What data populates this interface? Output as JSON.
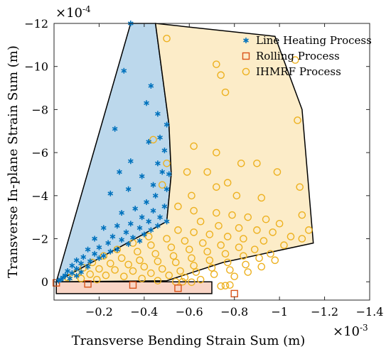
{
  "chart_data": {
    "type": "scatter",
    "xlabel": "Transverse Bending Strain Sum (m)",
    "ylabel": "Transverse In-plane Strain Sum (m)",
    "x_exponent": "×10",
    "x_exponent_power": "-3",
    "y_exponent": "×10",
    "y_exponent_power": "-4",
    "x_unit_scale": 0.001,
    "y_unit_scale": 0.0001,
    "xlim": [
      0,
      -1.4
    ],
    "ylim": [
      0.85,
      -12
    ],
    "x_reversed": true,
    "y_reversed": true,
    "x_ticks": [
      -0.2,
      -0.4,
      -0.6,
      -0.8,
      -1,
      -1.2,
      -1.4
    ],
    "x_tick_labels": [
      "−0.2",
      "−0.4",
      "−0.6",
      "−0.8",
      "−1",
      "−1.2",
      "−1.4"
    ],
    "y_ticks": [
      0,
      -2,
      -4,
      -6,
      -8,
      -10,
      -12
    ],
    "y_tick_labels": [
      "0",
      "−2",
      "−4",
      "−6",
      "−8",
      "−10",
      "−12"
    ],
    "grid": false,
    "legend_position": "top-right",
    "series": [
      {
        "name": "Line Heating Process",
        "marker": "asterisk",
        "color": "#0072bd",
        "region_fill": "#bcd8ec",
        "region": [
          [
            -0.01,
            0
          ],
          [
            -0.34,
            -12
          ],
          [
            -0.45,
            -12
          ],
          [
            -0.51,
            -7.3
          ],
          [
            -0.52,
            -5.0
          ],
          [
            -0.5,
            -2.8
          ],
          [
            -0.01,
            0
          ]
        ],
        "points": [
          [
            -0.34,
            -12
          ],
          [
            -0.31,
            -9.8
          ],
          [
            -0.43,
            -9.1
          ],
          [
            -0.41,
            -8.3
          ],
          [
            -0.46,
            -7.8
          ],
          [
            -0.5,
            -7.3
          ],
          [
            -0.27,
            -7.1
          ],
          [
            -0.42,
            -6.5
          ],
          [
            -0.47,
            -6.7
          ],
          [
            -0.49,
            -6.1
          ],
          [
            -0.34,
            -5.6
          ],
          [
            -0.46,
            -5.5
          ],
          [
            -0.29,
            -5.1
          ],
          [
            -0.48,
            -5.1
          ],
          [
            -0.51,
            -5.0
          ],
          [
            -0.39,
            -4.9
          ],
          [
            -0.44,
            -4.5
          ],
          [
            -0.5,
            -4.3
          ],
          [
            -0.33,
            -4.3
          ],
          [
            -0.25,
            -4.1
          ],
          [
            -0.45,
            -4.0
          ],
          [
            -0.41,
            -3.7
          ],
          [
            -0.49,
            -3.5
          ],
          [
            -0.36,
            -3.4
          ],
          [
            -0.44,
            -3.3
          ],
          [
            -0.3,
            -3.2
          ],
          [
            -0.47,
            -3.0
          ],
          [
            -0.39,
            -3.0
          ],
          [
            -0.5,
            -2.8
          ],
          [
            -0.42,
            -2.8
          ],
          [
            -0.34,
            -2.7
          ],
          [
            -0.46,
            -2.6
          ],
          [
            -0.28,
            -2.6
          ],
          [
            -0.38,
            -2.5
          ],
          [
            -0.22,
            -2.5
          ],
          [
            -0.43,
            -2.4
          ],
          [
            -0.32,
            -2.3
          ],
          [
            -0.4,
            -2.2
          ],
          [
            -0.26,
            -2.1
          ],
          [
            -0.35,
            -2.05
          ],
          [
            -0.18,
            -2.0
          ],
          [
            -0.3,
            -1.95
          ],
          [
            -0.38,
            -1.9
          ],
          [
            -0.24,
            -1.8
          ],
          [
            -0.33,
            -1.75
          ],
          [
            -0.2,
            -1.6
          ],
          [
            -0.28,
            -1.5
          ],
          [
            -0.15,
            -1.5
          ],
          [
            -0.25,
            -1.4
          ],
          [
            -0.18,
            -1.3
          ],
          [
            -0.22,
            -1.2
          ],
          [
            -0.13,
            -1.15
          ],
          [
            -0.2,
            -1.1
          ],
          [
            -0.1,
            -1.0
          ],
          [
            -0.16,
            -0.95
          ],
          [
            -0.12,
            -0.85
          ],
          [
            -0.08,
            -0.75
          ],
          [
            -0.15,
            -0.7
          ],
          [
            -0.1,
            -0.6
          ],
          [
            -0.06,
            -0.5
          ],
          [
            -0.12,
            -0.45
          ],
          [
            -0.08,
            -0.4
          ],
          [
            -0.05,
            -0.3
          ],
          [
            -0.1,
            -0.28
          ],
          [
            -0.04,
            -0.2
          ],
          [
            -0.07,
            -0.15
          ],
          [
            -0.03,
            -0.1
          ],
          [
            -0.02,
            -0.05
          ]
        ]
      },
      {
        "name": "Rolling Process",
        "marker": "square",
        "color": "#d95319",
        "region_fill": "#f9d5c6",
        "region": [
          [
            -0.01,
            0
          ],
          [
            -0.7,
            0
          ],
          [
            -0.7,
            0.55
          ],
          [
            -0.01,
            0.55
          ],
          [
            -0.01,
            0
          ]
        ],
        "points": [
          [
            -0.01,
            0.05
          ],
          [
            -0.15,
            0.1
          ],
          [
            -0.35,
            0.15
          ],
          [
            -0.55,
            0.3
          ],
          [
            -0.8,
            0.55
          ]
        ]
      },
      {
        "name": "IHMRF Process",
        "marker": "circle",
        "color": "#edb120",
        "region_fill": "#fcecc8",
        "region": [
          [
            -0.45,
            -12
          ],
          [
            -0.98,
            -11.4
          ],
          [
            -1.1,
            -8.0
          ],
          [
            -1.15,
            -1.8
          ],
          [
            -0.75,
            -0.9
          ],
          [
            -0.5,
            -0.05
          ],
          [
            -0.01,
            0
          ],
          [
            -0.5,
            -2.8
          ],
          [
            -0.52,
            -5.0
          ],
          [
            -0.51,
            -7.3
          ],
          [
            -0.45,
            -12
          ]
        ],
        "points": [
          [
            -0.5,
            -11.3
          ],
          [
            -0.72,
            -10.1
          ],
          [
            -1.07,
            -10.3
          ],
          [
            -0.74,
            -9.6
          ],
          [
            -0.76,
            -8.8
          ],
          [
            -1.08,
            -7.5
          ],
          [
            -0.44,
            -6.6
          ],
          [
            -0.62,
            -6.3
          ],
          [
            -0.72,
            -6.0
          ],
          [
            -0.5,
            -5.5
          ],
          [
            -0.59,
            -5.1
          ],
          [
            -0.68,
            -5.1
          ],
          [
            -0.83,
            -5.5
          ],
          [
            -0.9,
            -5.5
          ],
          [
            -0.99,
            -5.1
          ],
          [
            -0.77,
            -4.6
          ],
          [
            -0.72,
            -4.4
          ],
          [
            -0.48,
            -4.5
          ],
          [
            -0.61,
            -4.0
          ],
          [
            -0.81,
            -4.0
          ],
          [
            -0.92,
            -3.9
          ],
          [
            -1.09,
            -4.4
          ],
          [
            -1.1,
            -3.1
          ],
          [
            -0.55,
            -3.5
          ],
          [
            -0.62,
            -3.3
          ],
          [
            -0.72,
            -3.2
          ],
          [
            -0.79,
            -3.1
          ],
          [
            -0.86,
            -3.0
          ],
          [
            -0.94,
            -2.9
          ],
          [
            -1.0,
            -2.7
          ],
          [
            -1.13,
            -2.4
          ],
          [
            -0.65,
            -2.8
          ],
          [
            -0.73,
            -2.6
          ],
          [
            -0.82,
            -2.5
          ],
          [
            -0.9,
            -2.4
          ],
          [
            -0.97,
            -2.3
          ],
          [
            -1.05,
            -2.1
          ],
          [
            -1.1,
            -2.0
          ],
          [
            -0.55,
            -2.4
          ],
          [
            -0.62,
            -2.3
          ],
          [
            -0.69,
            -2.2
          ],
          [
            -0.77,
            -2.1
          ],
          [
            -0.84,
            -2.0
          ],
          [
            -0.93,
            -1.9
          ],
          [
            -1.02,
            -1.7
          ],
          [
            -0.42,
            -2.1
          ],
          [
            -0.5,
            -2.0
          ],
          [
            -0.58,
            -1.9
          ],
          [
            -0.66,
            -1.8
          ],
          [
            -0.74,
            -1.7
          ],
          [
            -0.82,
            -1.6
          ],
          [
            -0.89,
            -1.5
          ],
          [
            -0.96,
            -1.3
          ],
          [
            -0.35,
            -1.8
          ],
          [
            -0.43,
            -1.7
          ],
          [
            -0.52,
            -1.6
          ],
          [
            -0.6,
            -1.5
          ],
          [
            -0.68,
            -1.4
          ],
          [
            -0.76,
            -1.3
          ],
          [
            -0.84,
            -1.2
          ],
          [
            -0.91,
            -1.1
          ],
          [
            -0.98,
            -1.0
          ],
          [
            -0.28,
            -1.5
          ],
          [
            -0.37,
            -1.4
          ],
          [
            -0.45,
            -1.3
          ],
          [
            -0.53,
            -1.2
          ],
          [
            -0.61,
            -1.1
          ],
          [
            -0.69,
            -1.0
          ],
          [
            -0.77,
            -0.9
          ],
          [
            -0.85,
            -0.8
          ],
          [
            -0.92,
            -0.7
          ],
          [
            -0.22,
            -1.2
          ],
          [
            -0.3,
            -1.1
          ],
          [
            -0.38,
            -1.0
          ],
          [
            -0.46,
            -0.95
          ],
          [
            -0.54,
            -0.9
          ],
          [
            -0.62,
            -0.75
          ],
          [
            -0.7,
            -0.65
          ],
          [
            -0.78,
            -0.55
          ],
          [
            -0.86,
            -0.45
          ],
          [
            -0.17,
            -0.9
          ],
          [
            -0.25,
            -0.85
          ],
          [
            -0.33,
            -0.8
          ],
          [
            -0.4,
            -0.7
          ],
          [
            -0.48,
            -0.6
          ],
          [
            -0.56,
            -0.5
          ],
          [
            -0.63,
            -0.45
          ],
          [
            -0.71,
            -0.35
          ],
          [
            -0.8,
            -0.25
          ],
          [
            -0.13,
            -0.65
          ],
          [
            -0.2,
            -0.6
          ],
          [
            -0.27,
            -0.55
          ],
          [
            -0.35,
            -0.5
          ],
          [
            -0.43,
            -0.4
          ],
          [
            -0.51,
            -0.3
          ],
          [
            -0.58,
            -0.2
          ],
          [
            -0.65,
            -0.1
          ],
          [
            -0.1,
            -0.4
          ],
          [
            -0.16,
            -0.35
          ],
          [
            -0.23,
            -0.3
          ],
          [
            -0.31,
            -0.25
          ],
          [
            -0.39,
            -0.15
          ],
          [
            -0.46,
            -0.05
          ],
          [
            -0.54,
            0.0
          ],
          [
            -0.06,
            -0.2
          ],
          [
            -0.12,
            -0.15
          ],
          [
            -0.19,
            -0.1
          ],
          [
            -0.74,
            0.2
          ],
          [
            -0.76,
            0.18
          ],
          [
            -0.78,
            0.15
          ],
          [
            -0.61,
            0.02
          ],
          [
            -0.57,
            0.0
          ]
        ]
      }
    ]
  }
}
